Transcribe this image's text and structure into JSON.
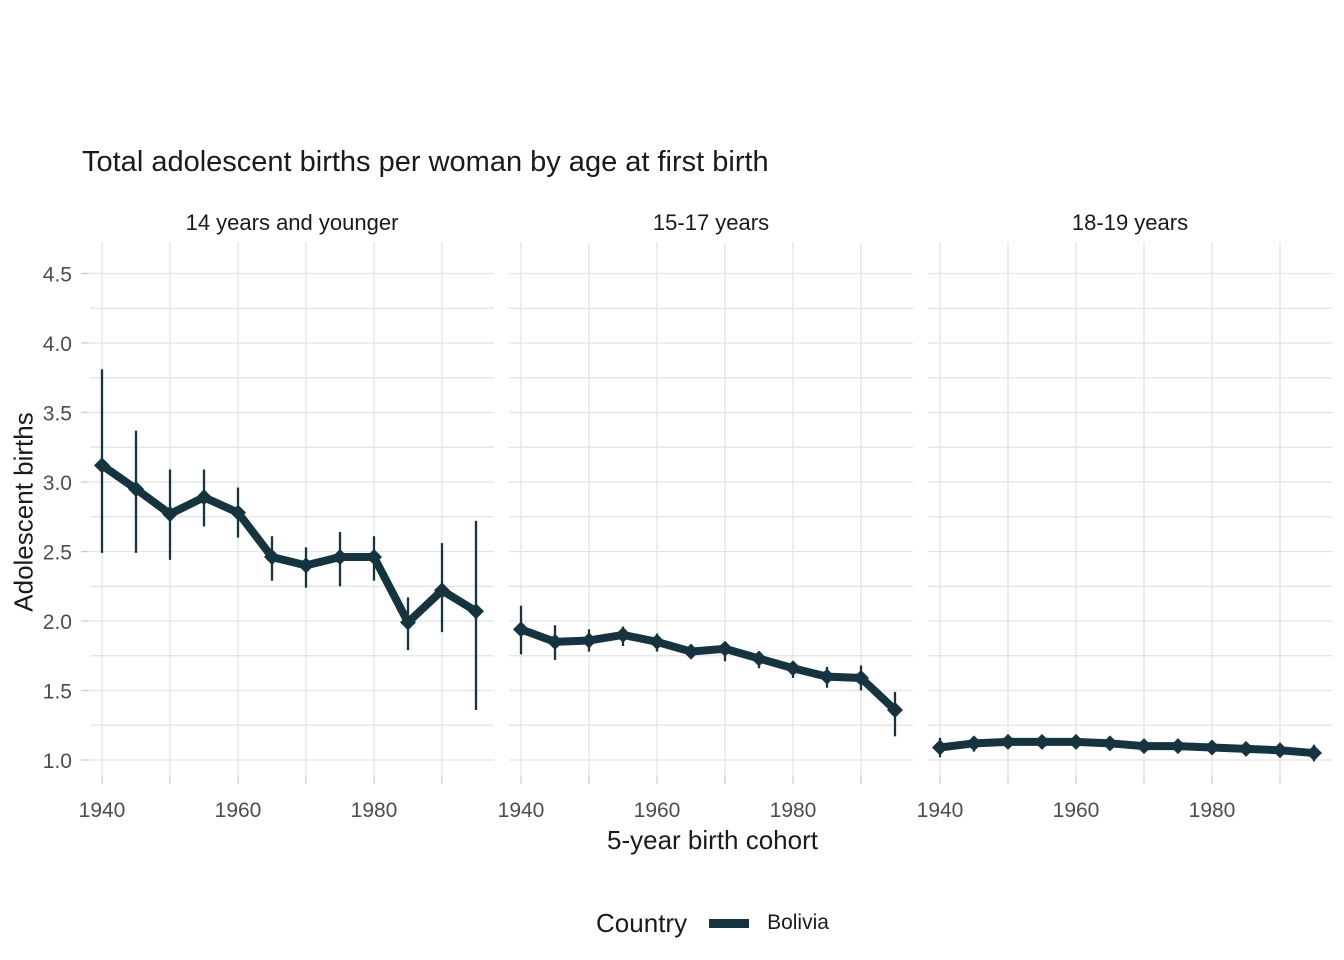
{
  "chart_data": {
    "type": "line",
    "title": "Total adolescent births per woman by age at first birth",
    "xlabel": "5-year birth cohort",
    "ylabel": "Adolescent births",
    "legend": {
      "title": "Country",
      "entries": [
        "Bolivia"
      ],
      "position": "bottom"
    },
    "color": "#16343F",
    "grid": true,
    "error_bars": true,
    "marker": "diamond",
    "x": [
      1940,
      1945,
      1950,
      1955,
      1960,
      1965,
      1970,
      1975,
      1980,
      1985,
      1990,
      1995
    ],
    "x_tick_labels": [
      "1940",
      "1960",
      "1980"
    ],
    "x_tick_years": [
      1940,
      1960,
      1980
    ],
    "x_gridline_years": [
      1940,
      1950,
      1960,
      1970,
      1980,
      1990
    ],
    "y_ticks": [
      1.0,
      1.5,
      2.0,
      2.5,
      3.0,
      3.5,
      4.0,
      4.5
    ],
    "y_minor_step": 0.25,
    "ylim": [
      0.88,
      4.73
    ],
    "xlim": [
      1938,
      1998
    ],
    "facets": [
      {
        "label": "14 years and younger",
        "values": [
          3.12,
          2.95,
          2.77,
          2.89,
          2.78,
          2.46,
          2.4,
          2.46,
          2.46,
          1.99,
          2.22,
          2.07
        ],
        "lower": [
          2.49,
          2.49,
          2.44,
          2.68,
          2.6,
          2.29,
          2.24,
          2.25,
          2.29,
          1.79,
          1.92,
          1.36
        ],
        "upper": [
          3.81,
          3.37,
          3.09,
          3.09,
          2.96,
          2.61,
          2.53,
          2.64,
          2.61,
          2.17,
          2.56,
          2.72
        ]
      },
      {
        "label": "15-17 years",
        "values": [
          1.94,
          1.85,
          1.86,
          1.9,
          1.85,
          1.78,
          1.8,
          1.73,
          1.66,
          1.6,
          1.59,
          1.36
        ],
        "lower": [
          1.76,
          1.72,
          1.78,
          1.82,
          1.78,
          1.73,
          1.71,
          1.66,
          1.59,
          1.52,
          1.5,
          1.17
        ],
        "upper": [
          2.11,
          1.97,
          1.94,
          1.96,
          1.91,
          1.83,
          1.85,
          1.76,
          1.71,
          1.67,
          1.68,
          1.49
        ]
      },
      {
        "label": "18-19 years",
        "values": [
          1.09,
          1.12,
          1.13,
          1.13,
          1.13,
          1.12,
          1.1,
          1.1,
          1.09,
          1.08,
          1.07,
          1.05
        ],
        "lower": [
          1.02,
          1.06,
          1.1,
          1.1,
          1.1,
          1.09,
          1.07,
          1.07,
          1.06,
          1.05,
          1.03,
          0.99
        ],
        "upper": [
          1.16,
          1.16,
          1.17,
          1.16,
          1.16,
          1.15,
          1.13,
          1.12,
          1.11,
          1.11,
          1.1,
          1.11
        ]
      }
    ]
  }
}
